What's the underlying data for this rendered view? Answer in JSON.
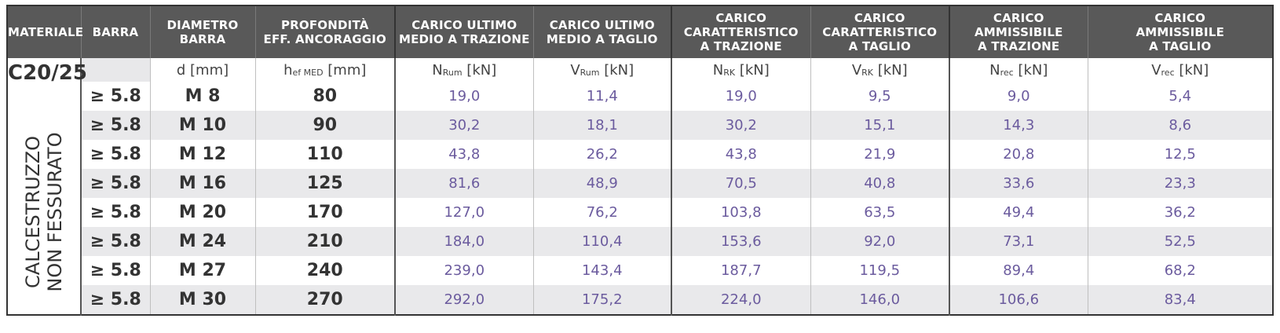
{
  "headers": {
    "materiale": "MATERIALE",
    "barra": "BARRA",
    "diametro": [
      "DIAMETRO",
      "BARRA"
    ],
    "profondita": [
      "PROFONDITÀ",
      "EFF. ANCORAGGIO"
    ],
    "carico_ultimo_trazione": [
      "CARICO ULTIMO",
      "MEDIO A TRAZIONE"
    ],
    "carico_ultimo_taglio": [
      "CARICO ULTIMO",
      "MEDIO A TAGLIO"
    ],
    "carico_car_trazione": [
      "CARICO",
      "CARATTERISTICO",
      "A TRAZIONE"
    ],
    "carico_car_taglio": [
      "CARICO",
      "CARATTERISTICO",
      "A TAGLIO"
    ],
    "carico_amm_trazione": [
      "CARICO",
      "AMMISSIBILE",
      "A TRAZIONE"
    ],
    "carico_amm_taglio": [
      "CARICO",
      "AMMISSIBILE",
      "A TAGLIO"
    ]
  },
  "units": {
    "d": {
      "main": "d",
      "sub": "",
      "unit": " [mm]"
    },
    "hef": {
      "main": "h",
      "sub": "ef MED",
      "unit": " [mm]"
    },
    "nrum": {
      "main": "N",
      "sub": "Rum",
      "unit": " [kN]"
    },
    "vrum": {
      "main": "V",
      "sub": "Rum",
      "unit": " [kN]"
    },
    "nrk": {
      "main": "N",
      "sub": "RK",
      "unit": " [kN]"
    },
    "vrk": {
      "main": "V",
      "sub": "RK",
      "unit": " [kN]"
    },
    "nrec": {
      "main": "N",
      "sub": "rec",
      "unit": " [kN]"
    },
    "vrec": {
      "main": "V",
      "sub": "rec",
      "unit": " [kN]"
    }
  },
  "material": {
    "code": "C20/25",
    "lines": [
      "CALCESTRUZZO",
      "NON FESSURATO"
    ]
  },
  "rows": [
    {
      "barra": "≥ 5.8",
      "diam": "M 8",
      "prof": "80",
      "nrum": "19,0",
      "vrum": "11,4",
      "nrk": "19,0",
      "vrk": "9,5",
      "nrec": "9,0",
      "vrec": "5,4"
    },
    {
      "barra": "≥ 5.8",
      "diam": "M 10",
      "prof": "90",
      "nrum": "30,2",
      "vrum": "18,1",
      "nrk": "30,2",
      "vrk": "15,1",
      "nrec": "14,3",
      "vrec": "8,6"
    },
    {
      "barra": "≥ 5.8",
      "diam": "M 12",
      "prof": "110",
      "nrum": "43,8",
      "vrum": "26,2",
      "nrk": "43,8",
      "vrk": "21,9",
      "nrec": "20,8",
      "vrec": "12,5"
    },
    {
      "barra": "≥ 5.8",
      "diam": "M 16",
      "prof": "125",
      "nrum": "81,6",
      "vrum": "48,9",
      "nrk": "70,5",
      "vrk": "40,8",
      "nrec": "33,6",
      "vrec": "23,3"
    },
    {
      "barra": "≥ 5.8",
      "diam": "M 20",
      "prof": "170",
      "nrum": "127,0",
      "vrum": "76,2",
      "nrk": "103,8",
      "vrk": "63,5",
      "nrec": "49,4",
      "vrec": "36,2"
    },
    {
      "barra": "≥ 5.8",
      "diam": "M 24",
      "prof": "210",
      "nrum": "184,0",
      "vrum": "110,4",
      "nrk": "153,6",
      "vrk": "92,0",
      "nrec": "73,1",
      "vrec": "52,5"
    },
    {
      "barra": "≥ 5.8",
      "diam": "M 27",
      "prof": "240",
      "nrum": "239,0",
      "vrum": "143,4",
      "nrk": "187,7",
      "vrk": "119,5",
      "nrec": "89,4",
      "vrec": "68,2"
    },
    {
      "barra": "≥ 5.8",
      "diam": "M 30",
      "prof": "270",
      "nrum": "292,0",
      "vrum": "175,2",
      "nrk": "224,0",
      "vrk": "146,0",
      "nrec": "106,6",
      "vrec": "83,4"
    }
  ]
}
